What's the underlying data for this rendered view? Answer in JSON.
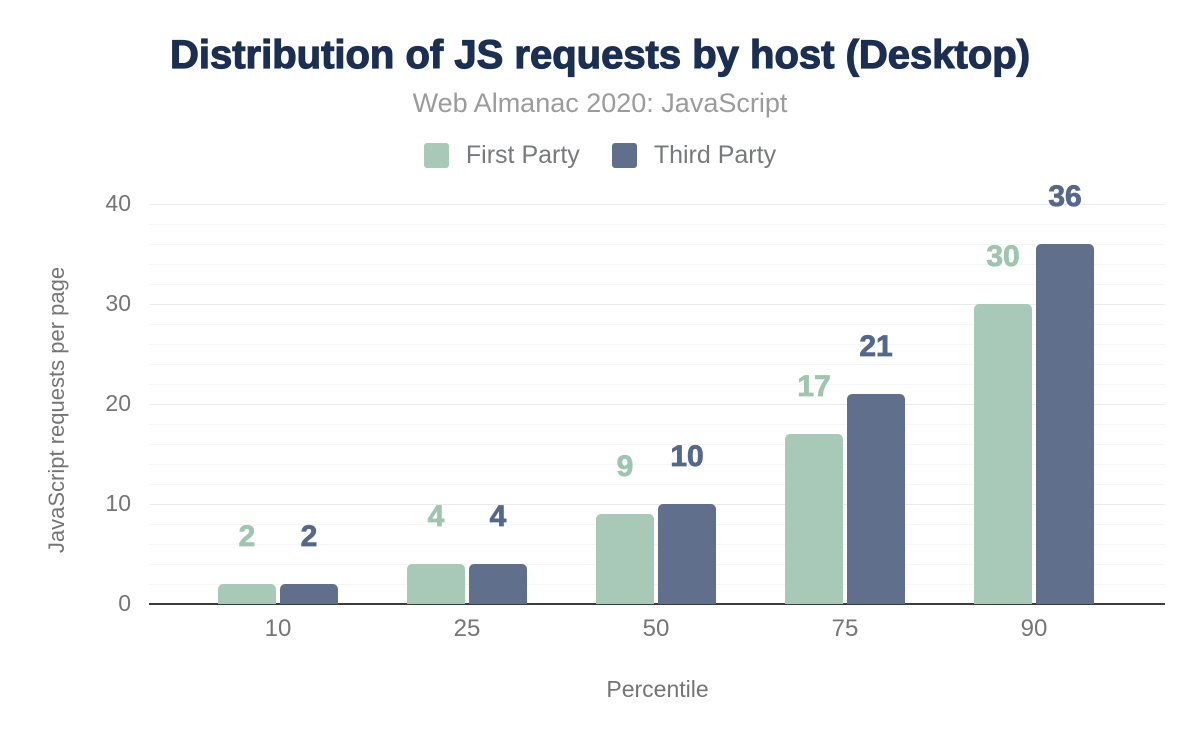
{
  "chart_data": {
    "type": "bar",
    "title": "Distribution of JS requests by host (Desktop)",
    "subtitle": "Web Almanac 2020: JavaScript",
    "xlabel": "Percentile",
    "ylabel": "JavaScript requests per page",
    "categories": [
      "10",
      "25",
      "50",
      "75",
      "90"
    ],
    "series": [
      {
        "name": "First Party",
        "color": "#a8c9b8",
        "label_color": "#9fc4b0",
        "values": [
          2,
          4,
          9,
          17,
          30
        ]
      },
      {
        "name": "Third Party",
        "color": "#5f6f8c",
        "label_color": "#54688a",
        "values": [
          2,
          4,
          10,
          21,
          36
        ]
      }
    ],
    "ylim": [
      0,
      40
    ],
    "y_ticks": [
      0,
      10,
      20,
      30,
      40
    ],
    "y_minor_step": 2,
    "grid": true,
    "legend_position": "top"
  },
  "colors": {
    "title": "#1b2f52",
    "subtitle": "#9b9b9b",
    "legend_text": "#77797b",
    "axis_text": "#757575",
    "axis_line": "#3c3c3c",
    "grid_major": "#ebebeb",
    "grid_minor": "#f6f6f6",
    "background": "#ffffff"
  }
}
